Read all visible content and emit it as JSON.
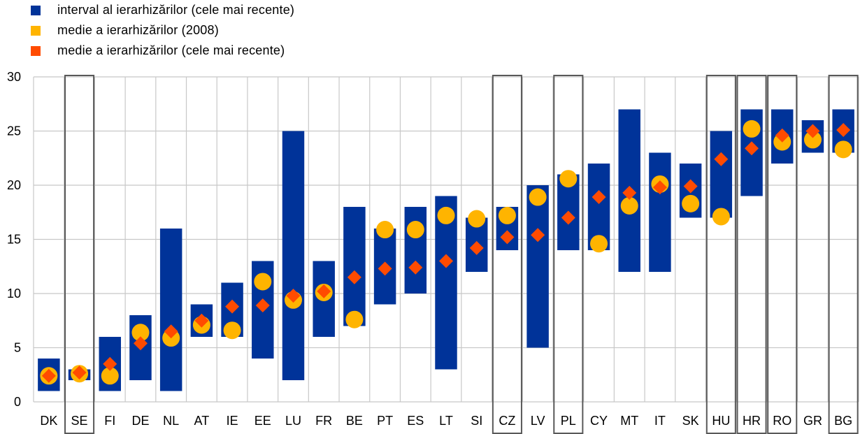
{
  "chart_data": {
    "type": "range-dot",
    "legend": [
      {
        "label": "interval al ierarhizărilor (cele mai recente)",
        "color": "#003399",
        "shape": "square"
      },
      {
        "label": "medie a ierarhizărilor (2008)",
        "color": "#FFB400",
        "shape": "square"
      },
      {
        "label": "medie a ierarhizărilor (cele mai recente)",
        "color": "#FF4B00",
        "shape": "square"
      }
    ],
    "categories": [
      "DK",
      "SE",
      "FI",
      "DE",
      "NL",
      "AT",
      "IE",
      "EE",
      "LU",
      "FR",
      "BE",
      "PT",
      "ES",
      "LT",
      "SI",
      "CZ",
      "LV",
      "PL",
      "CY",
      "MT",
      "IT",
      "SK",
      "HU",
      "HR",
      "RO",
      "GR",
      "BG"
    ],
    "range_min": [
      1,
      2,
      1,
      2,
      1,
      6,
      6,
      4,
      2,
      6,
      7,
      9,
      10,
      3,
      12,
      14,
      5,
      14,
      14,
      12,
      12,
      17,
      17,
      19,
      22,
      23,
      23
    ],
    "range_max": [
      4,
      3,
      6,
      8,
      16,
      9,
      11,
      13,
      25,
      13,
      18,
      16,
      18,
      19,
      17,
      18,
      20,
      21,
      22,
      27,
      23,
      22,
      25,
      27,
      27,
      26,
      27
    ],
    "avg_2008": [
      2.4,
      2.6,
      2.4,
      6.4,
      5.9,
      7.1,
      6.6,
      11.1,
      9.4,
      10.1,
      7.6,
      15.9,
      15.9,
      17.2,
      16.9,
      17.2,
      18.9,
      20.6,
      14.6,
      18.1,
      20.1,
      18.3,
      17.1,
      25.2,
      24.0,
      24.2,
      23.3
    ],
    "avg_recent": [
      2.4,
      2.7,
      3.5,
      5.4,
      6.5,
      7.5,
      8.8,
      8.9,
      9.8,
      10.2,
      11.5,
      12.3,
      12.4,
      13.0,
      14.2,
      15.2,
      15.4,
      17.0,
      18.9,
      19.3,
      19.8,
      19.9,
      22.4,
      23.4,
      24.6,
      25.0,
      25.1
    ],
    "highlighted": [
      "SE",
      "CZ",
      "PL",
      "HU",
      "HR",
      "RO",
      "BG"
    ],
    "ylim": [
      0,
      30
    ],
    "yticks": [
      0,
      5,
      10,
      15,
      20,
      25,
      30
    ],
    "grid": true,
    "legend_position": "top-left",
    "colors": {
      "range": "#003399",
      "avg_2008": "#FFB400",
      "avg_recent": "#FF4B00",
      "grid": "#C8C8C8",
      "highlight_box": "#595959"
    }
  }
}
